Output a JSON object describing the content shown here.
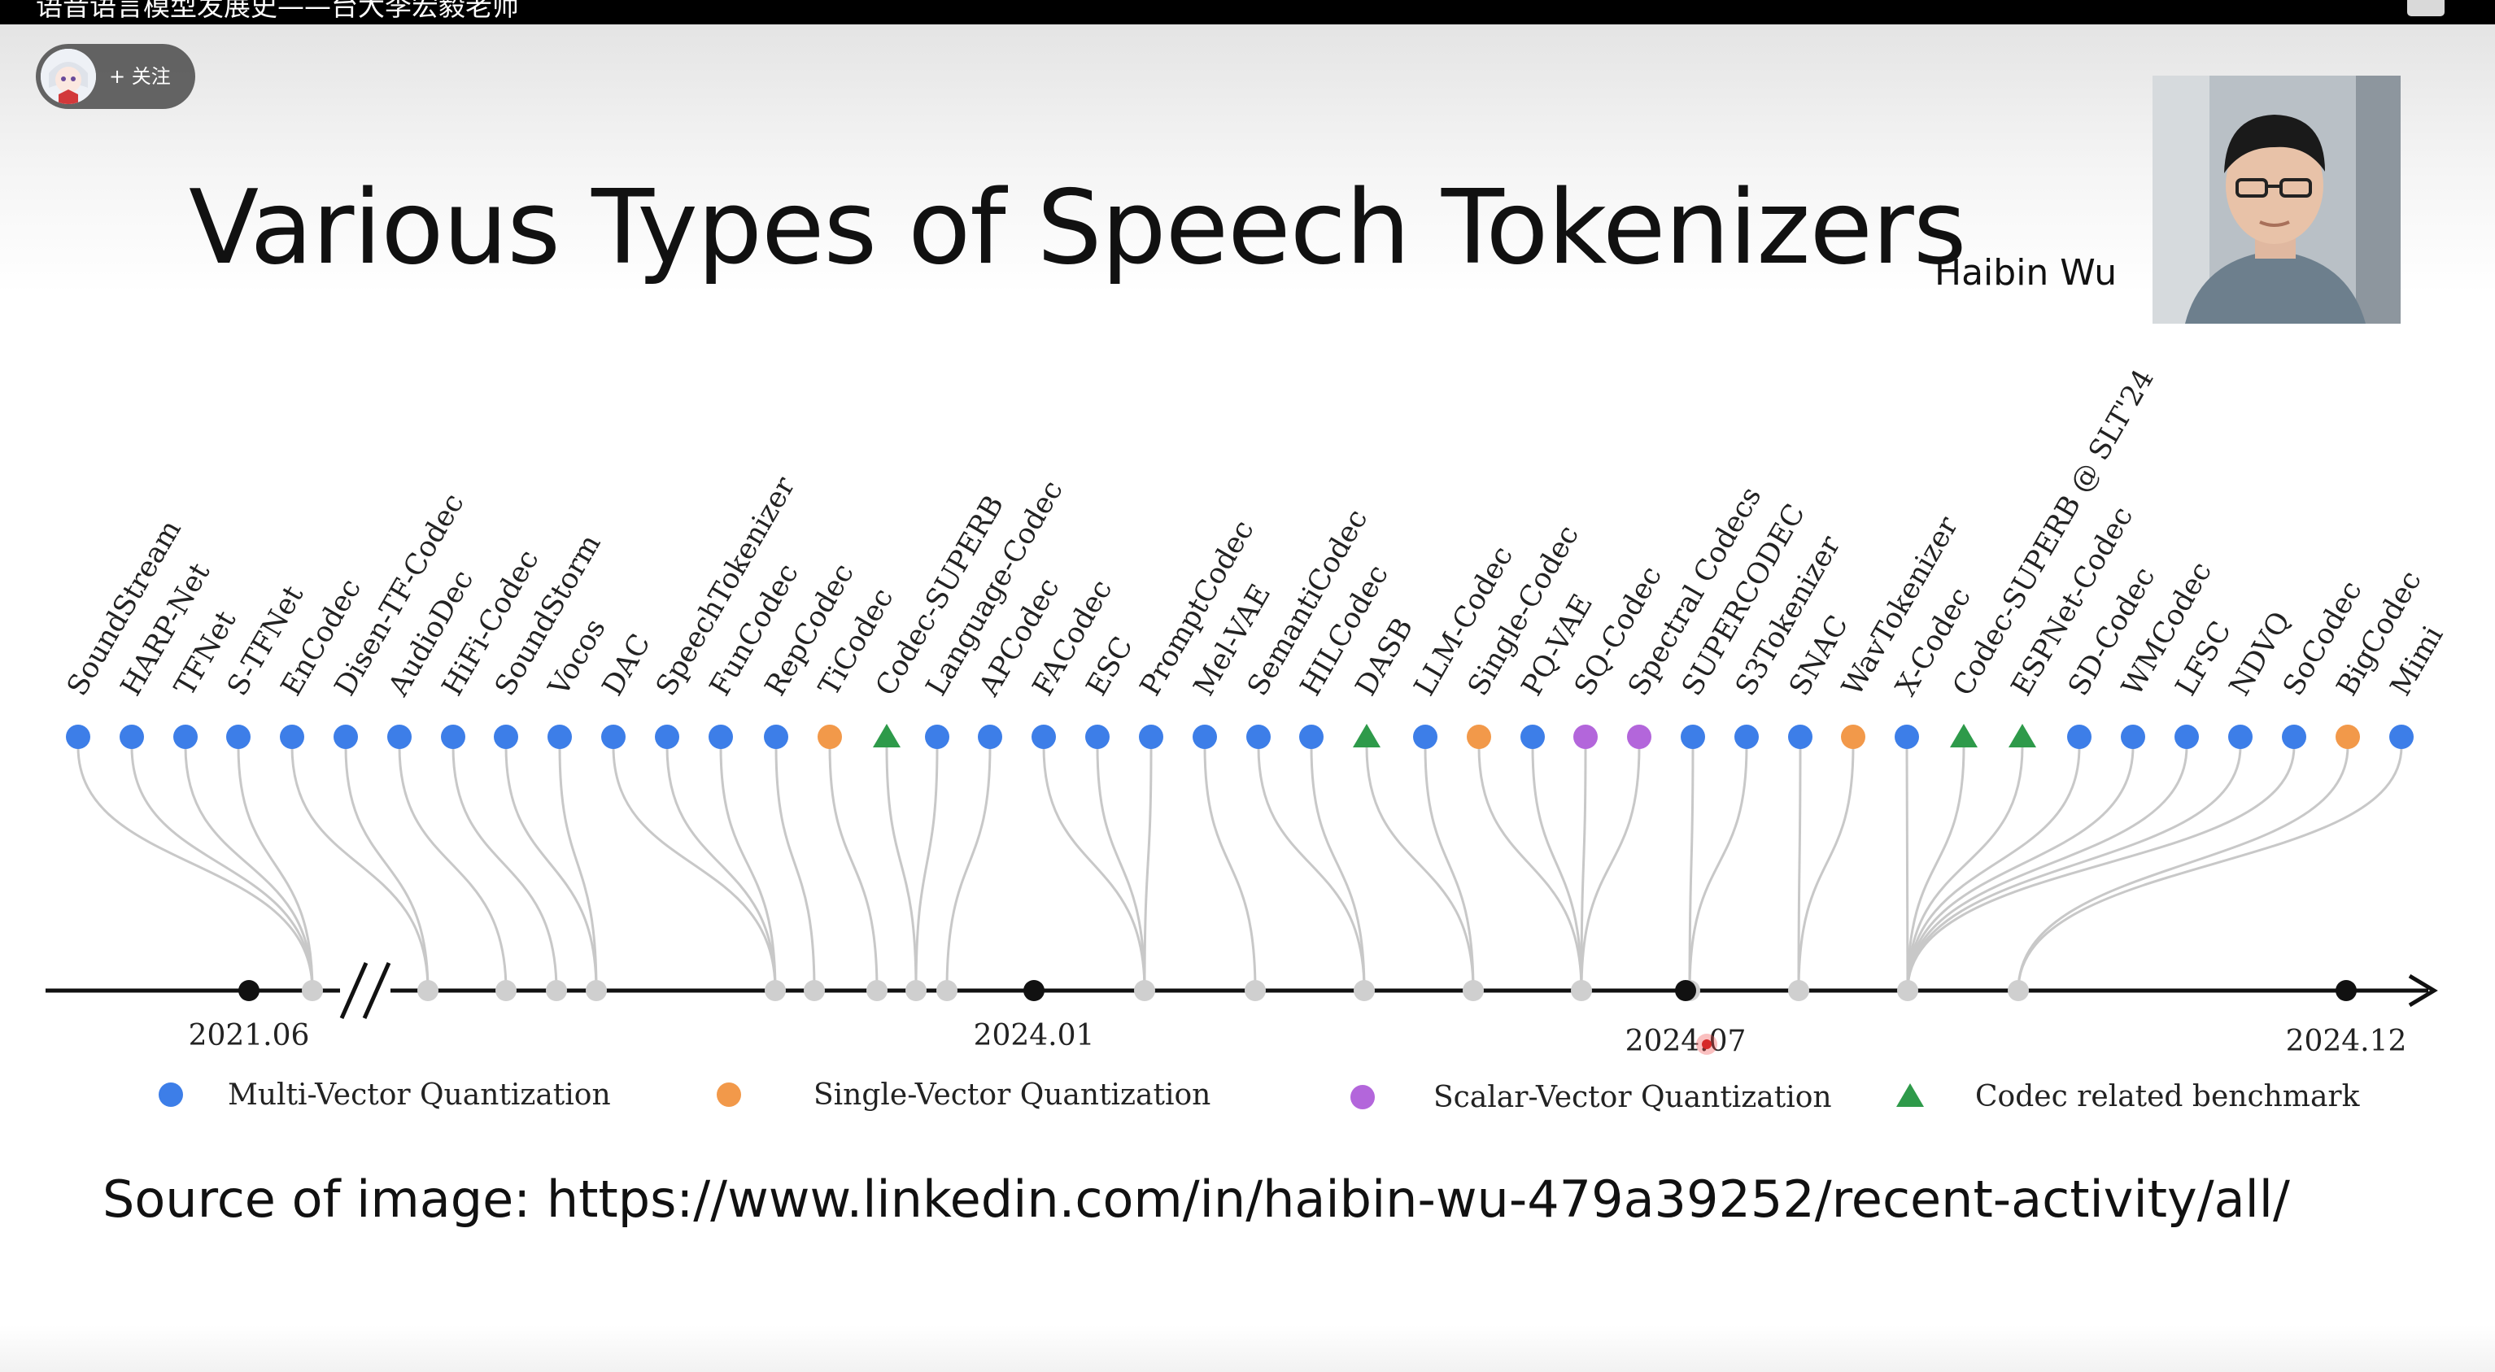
{
  "player": {
    "video_title": "语音语言模型发展史——台大李宏毅老师",
    "follow_label": "+ 关注",
    "comment_icon": "comment-icon"
  },
  "slide": {
    "title": "Various Types of Speech Tokenizers",
    "presenter_name": "Haibin Wu",
    "source_text": "Source of image: https://www.linkedin.com/in/haibin-wu-479a39252/recent-activity/all/"
  },
  "colors": {
    "multi": "#3d7ee8",
    "single": "#f2994a",
    "scalar": "#b366db",
    "benchmark": "#2e9a4a"
  },
  "chart_data": {
    "type": "timeline",
    "axis_ticks": [
      "2021.06",
      "2024.01",
      "2024.07",
      "2024.12"
    ],
    "legend": [
      {
        "label": "Multi-Vector Quantization",
        "category": "multi"
      },
      {
        "label": "Single-Vector Quantization",
        "category": "single"
      },
      {
        "label": "Scalar-Vector Quantization",
        "category": "scalar"
      },
      {
        "label": "Codec related benchmark",
        "category": "benchmark"
      }
    ],
    "items": [
      {
        "name": "SoundStream",
        "category": "multi"
      },
      {
        "name": "HARP-Net",
        "category": "multi"
      },
      {
        "name": "TFNet",
        "category": "multi"
      },
      {
        "name": "S-TFNet",
        "category": "multi"
      },
      {
        "name": "EnCodec",
        "category": "multi"
      },
      {
        "name": "Disen-TF-Codec",
        "category": "multi"
      },
      {
        "name": "AudioDec",
        "category": "multi"
      },
      {
        "name": "HiFi-Codec",
        "category": "multi"
      },
      {
        "name": "SoundStorm",
        "category": "multi"
      },
      {
        "name": "Vocos",
        "category": "multi"
      },
      {
        "name": "DAC",
        "category": "multi"
      },
      {
        "name": "SpeechTokenizer",
        "category": "multi"
      },
      {
        "name": "FunCodec",
        "category": "multi"
      },
      {
        "name": "RepCodec",
        "category": "multi"
      },
      {
        "name": "TiCodec",
        "category": "single"
      },
      {
        "name": "Codec-SUPERB",
        "category": "benchmark"
      },
      {
        "name": "Language-Codec",
        "category": "multi"
      },
      {
        "name": "APCodec",
        "category": "multi"
      },
      {
        "name": "FACodec",
        "category": "multi"
      },
      {
        "name": "ESC",
        "category": "multi"
      },
      {
        "name": "PromptCodec",
        "category": "multi"
      },
      {
        "name": "Mel-VAE",
        "category": "multi"
      },
      {
        "name": "SemantiCodec",
        "category": "multi"
      },
      {
        "name": "HILCodec",
        "category": "multi"
      },
      {
        "name": "DASB",
        "category": "benchmark"
      },
      {
        "name": "LLM-Codec",
        "category": "multi"
      },
      {
        "name": "Single-Codec",
        "category": "single"
      },
      {
        "name": "PQ-VAE",
        "category": "multi"
      },
      {
        "name": "SQ-Codec",
        "category": "scalar"
      },
      {
        "name": "Spectral Codecs",
        "category": "scalar"
      },
      {
        "name": "SUPERCODEC",
        "category": "multi"
      },
      {
        "name": "S3Tokenizer",
        "category": "multi"
      },
      {
        "name": "SNAC",
        "category": "multi"
      },
      {
        "name": "WavTokenizer",
        "category": "single"
      },
      {
        "name": "X-Codec",
        "category": "multi"
      },
      {
        "name": "Codec-SUPERB @ SLT'24",
        "category": "benchmark"
      },
      {
        "name": "ESPNet-Codec",
        "category": "benchmark"
      },
      {
        "name": "SD-Codec",
        "category": "multi"
      },
      {
        "name": "WMCodec",
        "category": "multi"
      },
      {
        "name": "LFSC",
        "category": "multi"
      },
      {
        "name": "NDVQ",
        "category": "multi"
      },
      {
        "name": "SoCodec",
        "category": "multi"
      },
      {
        "name": "BigCodec",
        "category": "single"
      },
      {
        "name": "Mimi",
        "category": "multi"
      }
    ]
  }
}
